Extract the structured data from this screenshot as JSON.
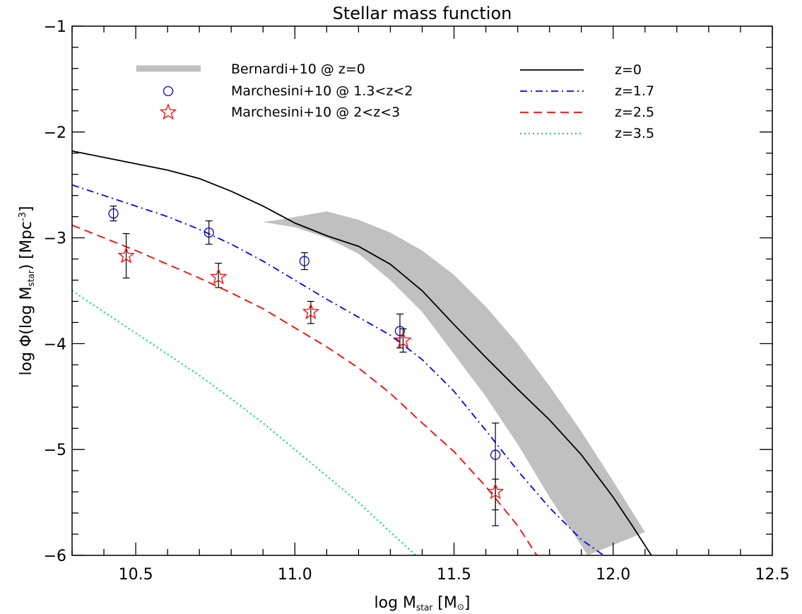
{
  "chart_data": {
    "type": "line",
    "title": "Stellar mass function",
    "xlabel": {
      "main": "log M",
      "sub": "star",
      "unit": "[M",
      "unit_sub": "⊙",
      "unit_close": "]"
    },
    "ylabel": {
      "main": "log Φ(log M",
      "sub": "star",
      "close": ")",
      "unit": "[Mpc",
      "unit_sup": "-3",
      "unit_close": "]"
    },
    "xlim": [
      10.3,
      12.5
    ],
    "ylim": [
      -6,
      -1
    ],
    "xticks": [
      10.5,
      11.0,
      11.5,
      12.0,
      12.5
    ],
    "xtick_labels": [
      "10.5",
      "11.0",
      "11.5",
      "12.0",
      "12.5"
    ],
    "yticks": [
      -6,
      -5,
      -4,
      -3,
      -2,
      -1
    ],
    "ytick_labels": [
      "−6",
      "−5",
      "−4",
      "−3",
      "−2",
      "−1"
    ],
    "colors": {
      "z0": "#000000",
      "z17": "#0000ff",
      "z25": "#ff0000",
      "z35": "#00e070",
      "band": "#c0c0c0",
      "circle": "#0000cc",
      "star": "#ff0000",
      "errorbar": "#000000"
    },
    "series": [
      {
        "name": "z=0",
        "key": "z0",
        "style": "solid",
        "x": [
          10.3,
          10.4,
          10.5,
          10.6,
          10.7,
          10.8,
          10.9,
          11.0,
          11.1,
          11.2,
          11.3,
          11.4,
          11.5,
          11.6,
          11.7,
          11.8,
          11.9,
          12.0,
          12.06,
          12.12
        ],
        "y": [
          -2.18,
          -2.24,
          -2.3,
          -2.36,
          -2.44,
          -2.56,
          -2.7,
          -2.86,
          -2.98,
          -3.08,
          -3.25,
          -3.5,
          -3.82,
          -4.13,
          -4.43,
          -4.72,
          -5.05,
          -5.45,
          -5.72,
          -6.0
        ]
      },
      {
        "name": "z=1.7",
        "key": "z17",
        "style": "dashdot",
        "x": [
          10.3,
          10.4,
          10.5,
          10.6,
          10.7,
          10.8,
          10.9,
          11.0,
          11.1,
          11.2,
          11.3,
          11.4,
          11.5,
          11.6,
          11.7,
          11.8,
          11.9,
          11.97
        ],
        "y": [
          -2.5,
          -2.6,
          -2.7,
          -2.8,
          -2.92,
          -3.06,
          -3.22,
          -3.4,
          -3.58,
          -3.75,
          -3.92,
          -4.15,
          -4.45,
          -4.82,
          -5.2,
          -5.55,
          -5.85,
          -6.0
        ]
      },
      {
        "name": "z=2.5",
        "key": "z25",
        "style": "dashed",
        "x": [
          10.3,
          10.4,
          10.5,
          10.6,
          10.7,
          10.8,
          10.9,
          11.0,
          11.1,
          11.2,
          11.3,
          11.4,
          11.5,
          11.6,
          11.7,
          11.76
        ],
        "y": [
          -2.88,
          -3.0,
          -3.12,
          -3.25,
          -3.38,
          -3.52,
          -3.67,
          -3.85,
          -4.03,
          -4.23,
          -4.47,
          -4.75,
          -5.02,
          -5.35,
          -5.72,
          -6.0
        ]
      },
      {
        "name": "z=3.5",
        "key": "z35",
        "style": "dotted",
        "x": [
          10.3,
          10.4,
          10.5,
          10.6,
          10.7,
          10.8,
          10.9,
          11.0,
          11.1,
          11.2,
          11.3,
          11.38
        ],
        "y": [
          -3.5,
          -3.7,
          -3.9,
          -4.1,
          -4.3,
          -4.52,
          -4.75,
          -5.0,
          -5.25,
          -5.5,
          -5.78,
          -6.0
        ]
      }
    ],
    "band": {
      "name": "Bernardi+10 @ z=0",
      "upper": {
        "x": [
          10.95,
          11.1,
          11.2,
          11.3,
          11.4,
          11.5,
          11.6,
          11.7,
          11.8,
          11.9,
          12.0,
          12.1
        ],
        "y": [
          -2.83,
          -2.75,
          -2.83,
          -2.95,
          -3.12,
          -3.35,
          -3.65,
          -4.0,
          -4.4,
          -4.83,
          -5.3,
          -5.78
        ]
      },
      "lower": {
        "x": [
          11.92,
          11.8,
          11.7,
          11.6,
          11.5,
          11.4,
          11.3,
          11.2,
          11.1,
          11.0,
          10.9
        ],
        "y": [
          -6.0,
          -5.45,
          -4.95,
          -4.5,
          -4.1,
          -3.7,
          -3.4,
          -3.15,
          -3.0,
          -2.9,
          -2.85
        ]
      }
    },
    "points_circle": {
      "name": "Marchesini+10 @ 1.3<z<2",
      "x": [
        10.43,
        10.73,
        11.03,
        11.33,
        11.63
      ],
      "y": [
        -2.77,
        -2.95,
        -3.22,
        -3.88,
        -5.05
      ],
      "err_low": [
        -2.84,
        -3.06,
        -3.3,
        -4.04,
        -5.72
      ],
      "err_high": [
        -2.7,
        -2.84,
        -3.14,
        -3.72,
        -4.75
      ]
    },
    "points_star": {
      "name": "Marchesini+10 @ 2<z<3",
      "x": [
        10.47,
        10.76,
        11.05,
        11.34,
        11.63
      ],
      "y": [
        -3.17,
        -3.37,
        -3.7,
        -3.97,
        -5.4
      ],
      "err_low": [
        -3.38,
        -3.47,
        -3.81,
        -4.08,
        -5.57
      ],
      "err_high": [
        -2.96,
        -3.24,
        -3.6,
        -3.86,
        -5.28
      ]
    },
    "legend_placement": "top, two columns"
  }
}
